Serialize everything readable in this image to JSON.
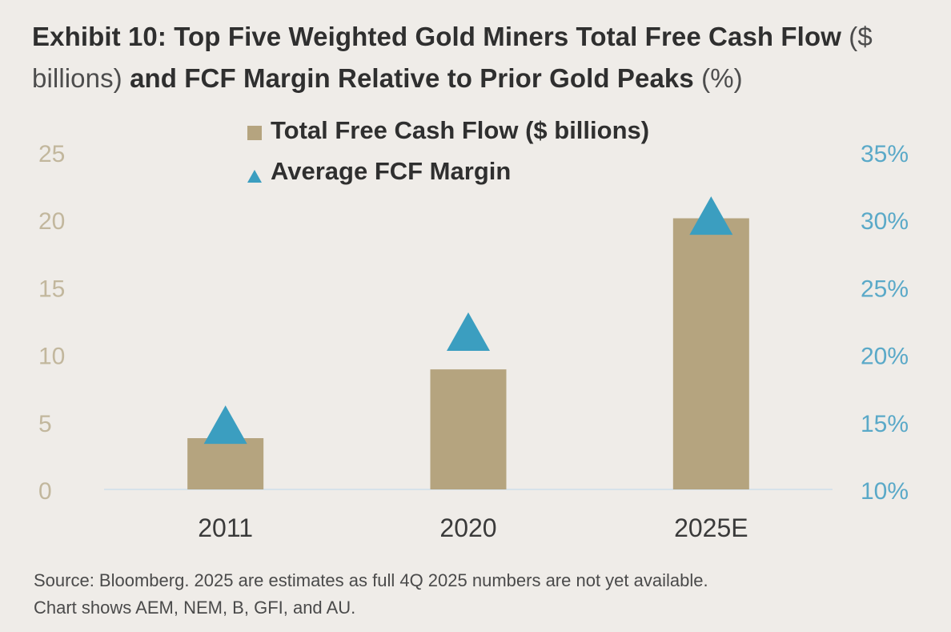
{
  "title": {
    "part1": "Exhibit 10: Top Five Weighted Gold Miners Total Free Cash Flow",
    "part2": "($ billions)",
    "part3": "and FCF Margin Relative to Prior Gold Peaks",
    "part4": "(%)"
  },
  "source": {
    "line1": "Source: Bloomberg. 2025 are estimates as full 4Q 2025 numbers are not yet available.",
    "line2": "Chart shows AEM, NEM, B, GFI, and AU."
  },
  "colors": {
    "bar": "#b5a47f",
    "triangle": "#3b9ec0",
    "left_axis_text": "#c2b79d",
    "right_axis_text": "#5aa9c8",
    "axis_line": "#d6e2ea",
    "text": "#2f2f2f"
  },
  "chart_data": {
    "type": "bar",
    "categories": [
      "2011",
      "2020",
      "2025E"
    ],
    "series": [
      {
        "name": "Total Free Cash Flow ($ billions)",
        "type": "bar",
        "axis": "left",
        "values": [
          3.8,
          8.9,
          20.1
        ]
      },
      {
        "name": "Average FCF Margin",
        "type": "scatter",
        "marker": "triangle",
        "axis": "right",
        "values": [
          14.8,
          21.7,
          30.3
        ]
      }
    ],
    "y_left": {
      "ylim": [
        0,
        25
      ],
      "ticks": [
        "0",
        "5",
        "10",
        "15",
        "20",
        "25"
      ]
    },
    "y_right": {
      "ylim": [
        10,
        35
      ],
      "ticks": [
        "10%",
        "15%",
        "20%",
        "25%",
        "30%",
        "35%"
      ]
    },
    "legend_placement": "top-center",
    "grid": false
  }
}
